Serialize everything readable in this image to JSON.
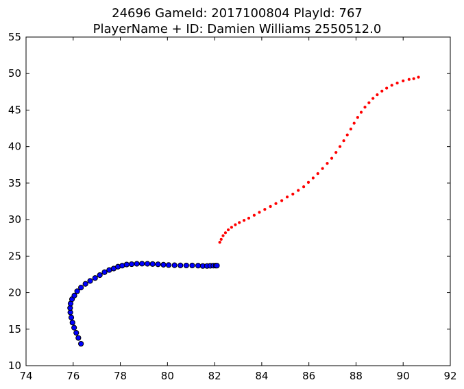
{
  "chart_data": {
    "type": "scatter",
    "title": "24696 GameId: 2017100804 PlayId: 767",
    "subtitle": "PlayerName + ID: Damien Williams 2550512.0",
    "xlabel": "",
    "ylabel": "",
    "xlim": [
      74,
      92
    ],
    "ylim": [
      10,
      55
    ],
    "xticks": [
      74,
      76,
      78,
      80,
      82,
      84,
      86,
      88,
      90,
      92
    ],
    "yticks": [
      10,
      15,
      20,
      25,
      30,
      35,
      40,
      45,
      50,
      55
    ],
    "grid": false,
    "series": [
      {
        "color": "#0000ff",
        "edge_color": "#000000",
        "marker": "circle-large",
        "points": [
          [
            76.33,
            13.0
          ],
          [
            76.22,
            13.8
          ],
          [
            76.13,
            14.5
          ],
          [
            76.04,
            15.2
          ],
          [
            75.97,
            15.9
          ],
          [
            75.92,
            16.6
          ],
          [
            75.88,
            17.3
          ],
          [
            75.87,
            17.9
          ],
          [
            75.89,
            18.5
          ],
          [
            75.95,
            19.1
          ],
          [
            76.05,
            19.6
          ],
          [
            76.17,
            20.2
          ],
          [
            76.33,
            20.7
          ],
          [
            76.52,
            21.2
          ],
          [
            76.72,
            21.6
          ],
          [
            76.93,
            22.0
          ],
          [
            77.13,
            22.4
          ],
          [
            77.33,
            22.8
          ],
          [
            77.53,
            23.1
          ],
          [
            77.72,
            23.3
          ],
          [
            77.9,
            23.55
          ],
          [
            78.08,
            23.7
          ],
          [
            78.27,
            23.85
          ],
          [
            78.48,
            23.9
          ],
          [
            78.7,
            23.95
          ],
          [
            78.92,
            23.97
          ],
          [
            79.15,
            23.95
          ],
          [
            79.37,
            23.92
          ],
          [
            79.6,
            23.88
          ],
          [
            79.83,
            23.82
          ],
          [
            80.05,
            23.78
          ],
          [
            80.3,
            23.75
          ],
          [
            80.55,
            23.73
          ],
          [
            80.8,
            23.72
          ],
          [
            81.05,
            23.72
          ],
          [
            81.3,
            23.7
          ],
          [
            81.5,
            23.65
          ],
          [
            81.68,
            23.65
          ],
          [
            81.82,
            23.68
          ],
          [
            81.95,
            23.7
          ],
          [
            82.05,
            23.7
          ],
          [
            82.1,
            23.7
          ]
        ]
      },
      {
        "color": "#ff0000",
        "edge_color": "#ff0000",
        "marker": "circle-small",
        "points": [
          [
            82.22,
            26.9
          ],
          [
            82.28,
            27.3
          ],
          [
            82.36,
            27.8
          ],
          [
            82.46,
            28.2
          ],
          [
            82.58,
            28.6
          ],
          [
            82.72,
            28.95
          ],
          [
            82.88,
            29.3
          ],
          [
            83.05,
            29.6
          ],
          [
            83.25,
            29.9
          ],
          [
            83.45,
            30.2
          ],
          [
            83.68,
            30.6
          ],
          [
            83.9,
            31.0
          ],
          [
            84.13,
            31.4
          ],
          [
            84.37,
            31.8
          ],
          [
            84.6,
            32.2
          ],
          [
            84.85,
            32.6
          ],
          [
            85.08,
            33.1
          ],
          [
            85.32,
            33.5
          ],
          [
            85.55,
            34.0
          ],
          [
            85.78,
            34.5
          ],
          [
            85.98,
            35.1
          ],
          [
            86.18,
            35.7
          ],
          [
            86.38,
            36.3
          ],
          [
            86.58,
            37.0
          ],
          [
            86.78,
            37.7
          ],
          [
            86.97,
            38.4
          ],
          [
            87.15,
            39.2
          ],
          [
            87.32,
            40.0
          ],
          [
            87.48,
            40.8
          ],
          [
            87.63,
            41.6
          ],
          [
            87.78,
            42.4
          ],
          [
            87.92,
            43.2
          ],
          [
            88.07,
            44.0
          ],
          [
            88.22,
            44.7
          ],
          [
            88.38,
            45.4
          ],
          [
            88.55,
            46.0
          ],
          [
            88.72,
            46.6
          ],
          [
            88.9,
            47.1
          ],
          [
            89.1,
            47.6
          ],
          [
            89.3,
            48.0
          ],
          [
            89.52,
            48.4
          ],
          [
            89.75,
            48.7
          ],
          [
            90.0,
            49.0
          ],
          [
            90.25,
            49.2
          ],
          [
            90.45,
            49.3
          ],
          [
            90.65,
            49.5
          ]
        ]
      }
    ]
  }
}
